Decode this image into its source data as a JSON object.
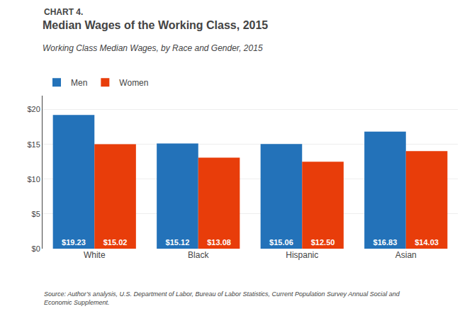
{
  "chart_data": {
    "type": "bar",
    "title": "Median Wages of the Working Class, 2015",
    "subtitle": "Working Class Median Wages, by Race and Gender, 2015",
    "annotations": [
      "CHART 4.",
      "Source: Author’s analysis, U.S. Department of Labor, Bureau of Labor Statistics, Current Population Survey Annual Social and\nEconomic Supplement."
    ],
    "categories": [
      "White",
      "Black",
      "Hispanic",
      "Asian"
    ],
    "series": [
      {
        "name": "Men",
        "color": "#2372b9",
        "values": [
          19.23,
          15.12,
          15.06,
          16.83
        ],
        "value_labels": [
          "$19.23",
          "$15.12",
          "$15.06",
          "$16.83"
        ]
      },
      {
        "name": "Women",
        "color": "#e83d0a",
        "values": [
          15.02,
          13.08,
          12.5,
          14.03
        ],
        "value_labels": [
          "$15.02",
          "$13.08",
          "$12.50",
          "$14.03"
        ]
      }
    ],
    "ylim": [
      0,
      22
    ],
    "yticks": [
      {
        "value": 0,
        "label": "$0"
      },
      {
        "value": 5,
        "label": "$5"
      },
      {
        "value": 10,
        "label": "$10"
      },
      {
        "value": 15,
        "label": "$15"
      },
      {
        "value": 20,
        "label": "$20"
      }
    ],
    "grid": true,
    "legend": "top-left",
    "data_labels": true
  }
}
